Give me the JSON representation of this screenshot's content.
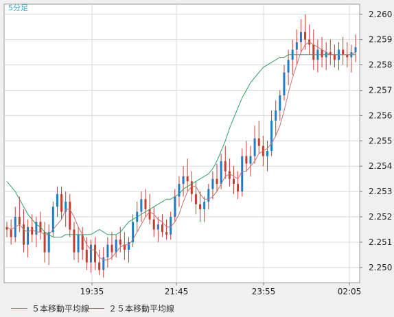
{
  "chart_data": {
    "type": "candlestick",
    "period_label": "5分足",
    "x_tick_labels": [
      "19:35",
      "21:45",
      "23:55",
      "02:05"
    ],
    "y_tick_labels": [
      "2.260",
      "2.259",
      "2.258",
      "2.257",
      "2.256",
      "2.255",
      "2.254",
      "2.253",
      "2.252",
      "2.251",
      "2.250"
    ],
    "ylim": [
      2.2494,
      2.2604
    ],
    "grid": true,
    "legend_position": "bottom-left",
    "colors": {
      "up": "#1e7dc6",
      "down": "#c83a2e",
      "ma5": "#c87070",
      "ma25": "#2aa06a",
      "grid": "#d8d8d8",
      "plot_bg": "#ffffff"
    },
    "series": [
      {
        "name": "５本移動平均線",
        "key": "ma5"
      },
      {
        "name": "２５本移動平均線",
        "key": "ma25"
      }
    ],
    "candles": [
      [
        2.2516,
        2.2518,
        2.2512,
        2.2515
      ],
      [
        2.2515,
        2.2519,
        2.2509,
        2.2512
      ],
      [
        2.2512,
        2.2524,
        2.251,
        2.252
      ],
      [
        2.252,
        2.2528,
        2.2514,
        2.2517
      ],
      [
        2.2517,
        2.2523,
        2.2506,
        2.2509
      ],
      [
        2.2509,
        2.2519,
        2.2504,
        2.2516
      ],
      [
        2.2516,
        2.2521,
        2.251,
        2.2513
      ],
      [
        2.2513,
        2.252,
        2.2508,
        2.2518
      ],
      [
        2.2518,
        2.2522,
        2.2511,
        2.2514
      ],
      [
        2.2514,
        2.2518,
        2.2502,
        2.2506
      ],
      [
        2.2506,
        2.2517,
        2.2501,
        2.2514
      ],
      [
        2.2514,
        2.2526,
        2.2512,
        2.2524
      ],
      [
        2.2524,
        2.2532,
        2.252,
        2.2529
      ],
      [
        2.2529,
        2.2532,
        2.2519,
        2.2522
      ],
      [
        2.2522,
        2.253,
        2.2516,
        2.2526
      ],
      [
        2.2526,
        2.2529,
        2.2512,
        2.2515
      ],
      [
        2.2515,
        2.2518,
        2.2503,
        2.2506
      ],
      [
        2.2506,
        2.2516,
        2.2502,
        2.2513
      ],
      [
        2.2513,
        2.2516,
        2.2503,
        2.2507
      ],
      [
        2.2507,
        2.2512,
        2.2499,
        2.2502
      ],
      [
        2.2502,
        2.2511,
        2.2498,
        2.2509
      ],
      [
        2.2509,
        2.2512,
        2.2499,
        2.2502
      ],
      [
        2.2502,
        2.2507,
        2.2497,
        2.2499
      ],
      [
        2.2499,
        2.2508,
        2.2496,
        2.2504
      ],
      [
        2.2504,
        2.2512,
        2.25,
        2.2509
      ],
      [
        2.2509,
        2.2514,
        2.2503,
        2.2506
      ],
      [
        2.2506,
        2.2513,
        2.2504,
        2.2511
      ],
      [
        2.2511,
        2.2516,
        2.2506,
        2.2509
      ],
      [
        2.2509,
        2.2514,
        2.2503,
        2.2507
      ],
      [
        2.2507,
        2.2512,
        2.2502,
        2.251
      ],
      [
        2.251,
        2.2521,
        2.2508,
        2.2518
      ],
      [
        2.2518,
        2.2526,
        2.2514,
        2.2522
      ],
      [
        2.2522,
        2.253,
        2.2518,
        2.2527
      ],
      [
        2.2527,
        2.2531,
        2.252,
        2.2523
      ],
      [
        2.2523,
        2.2529,
        2.2517,
        2.2519
      ],
      [
        2.2519,
        2.2524,
        2.2512,
        2.2515
      ],
      [
        2.2515,
        2.252,
        2.251,
        2.2517
      ],
      [
        2.2517,
        2.2521,
        2.2512,
        2.2514
      ],
      [
        2.2514,
        2.2519,
        2.2511,
        2.2513
      ],
      [
        2.2513,
        2.2522,
        2.2511,
        2.252
      ],
      [
        2.252,
        2.2531,
        2.2518,
        2.2528
      ],
      [
        2.2528,
        2.2536,
        2.2524,
        2.2533
      ],
      [
        2.2533,
        2.254,
        2.2528,
        2.2536
      ],
      [
        2.2536,
        2.2543,
        2.253,
        2.2534
      ],
      [
        2.2534,
        2.2538,
        2.2526,
        2.2529
      ],
      [
        2.2529,
        2.2534,
        2.2521,
        2.2525
      ],
      [
        2.2525,
        2.253,
        2.2518,
        2.2523
      ],
      [
        2.2523,
        2.2528,
        2.2518,
        2.2526
      ],
      [
        2.2526,
        2.2533,
        2.2523,
        2.2531
      ],
      [
        2.2531,
        2.2538,
        2.2527,
        2.2535
      ],
      [
        2.2535,
        2.2541,
        2.253,
        2.2533
      ],
      [
        2.2533,
        2.2545,
        2.2531,
        2.2542
      ],
      [
        2.2542,
        2.2548,
        2.2535,
        2.2538
      ],
      [
        2.2538,
        2.2543,
        2.2532,
        2.2535
      ],
      [
        2.2535,
        2.254,
        2.2529,
        2.2533
      ],
      [
        2.2533,
        2.2538,
        2.2527,
        2.253
      ],
      [
        2.253,
        2.2547,
        2.2528,
        2.2544
      ],
      [
        2.2544,
        2.255,
        2.2538,
        2.2541
      ],
      [
        2.2541,
        2.2548,
        2.2536,
        2.2544
      ],
      [
        2.2544,
        2.2556,
        2.2541,
        2.2551
      ],
      [
        2.2551,
        2.2558,
        2.2545,
        2.2548
      ],
      [
        2.2548,
        2.2552,
        2.254,
        2.2544
      ],
      [
        2.2544,
        2.255,
        2.2538,
        2.2546
      ],
      [
        2.2546,
        2.2562,
        2.2544,
        2.2558
      ],
      [
        2.2558,
        2.2566,
        2.2552,
        2.2562
      ],
      [
        2.2562,
        2.257,
        2.2558,
        2.2568
      ],
      [
        2.2568,
        2.258,
        2.2566,
        2.2577
      ],
      [
        2.2577,
        2.2586,
        2.2572,
        2.2582
      ],
      [
        2.2582,
        2.259,
        2.2576,
        2.2586
      ],
      [
        2.2586,
        2.2594,
        2.258,
        2.2589
      ],
      [
        2.2589,
        2.2598,
        2.2585,
        2.2593
      ],
      [
        2.2593,
        2.26,
        2.2586,
        2.259
      ],
      [
        2.259,
        2.2596,
        2.2584,
        2.2588
      ],
      [
        2.2588,
        2.2594,
        2.2578,
        2.2582
      ],
      [
        2.2582,
        2.259,
        2.2577,
        2.2586
      ],
      [
        2.2586,
        2.2591,
        2.2579,
        2.2583
      ],
      [
        2.2583,
        2.2589,
        2.2578,
        2.2585
      ],
      [
        2.2585,
        2.259,
        2.258,
        2.2584
      ],
      [
        2.2584,
        2.2588,
        2.2579,
        2.2582
      ],
      [
        2.2582,
        2.2589,
        2.2578,
        2.2586
      ],
      [
        2.2586,
        2.2591,
        2.258,
        2.2584
      ],
      [
        2.2584,
        2.2589,
        2.2579,
        2.2583
      ],
      [
        2.2583,
        2.2588,
        2.2577,
        2.2585
      ],
      [
        2.2585,
        2.2592,
        2.2581,
        2.2587
      ]
    ],
    "ma5": [
      2.2516,
      2.2515,
      2.2516,
      2.2517,
      2.2515,
      2.2514,
      2.2515,
      2.2514,
      2.2514,
      2.2513,
      2.2513,
      2.2515,
      2.2517,
      2.2519,
      2.2523,
      2.2523,
      2.252,
      2.2516,
      2.2513,
      2.2509,
      2.2507,
      2.2507,
      2.2504,
      2.2503,
      2.2503,
      2.2504,
      2.2506,
      2.2508,
      2.2509,
      2.2509,
      2.2511,
      2.2514,
      2.2517,
      2.252,
      2.2522,
      2.2521,
      2.2519,
      2.2518,
      2.2516,
      2.2516,
      2.2518,
      2.2521,
      2.2526,
      2.253,
      2.2532,
      2.2532,
      2.2529,
      2.2527,
      2.2527,
      2.2528,
      2.253,
      2.2533,
      2.2536,
      2.2537,
      2.2536,
      2.2535,
      2.2538,
      2.2538,
      2.254,
      2.2542,
      2.2545,
      2.2546,
      2.2547,
      2.2549,
      2.2552,
      2.2556,
      2.2562,
      2.2569,
      2.2575,
      2.258,
      2.2585,
      2.2588,
      2.2589,
      2.2588,
      2.2587,
      2.2586,
      2.2585,
      2.2584,
      2.2584,
      2.2584,
      2.2584,
      2.2584,
      2.2584,
      2.2585
    ],
    "ma25": [
      2.2534,
      2.2532,
      2.253,
      2.2527,
      2.2524,
      2.2521,
      2.2519,
      2.2517,
      2.2516,
      2.2514,
      2.2513,
      2.2512,
      2.2512,
      2.2512,
      2.2513,
      2.2513,
      2.2513,
      2.2513,
      2.2513,
      2.2513,
      2.2513,
      2.2514,
      2.2515,
      2.2514,
      2.2513,
      2.2513,
      2.2513,
      2.2514,
      2.2516,
      2.2518,
      2.2519,
      2.252,
      2.2521,
      2.2522,
      2.2523,
      2.2524,
      2.2525,
      2.2526,
      2.2527,
      2.2527,
      2.2528,
      2.2529,
      2.2531,
      2.2532,
      2.2533,
      2.2534,
      2.2535,
      2.2536,
      2.2537,
      2.2539,
      2.2542,
      2.2546,
      2.255,
      2.2555,
      2.2559,
      2.2563,
      2.2567,
      2.257,
      2.2573,
      2.2575,
      2.2577,
      2.2579,
      2.258,
      2.2581,
      2.2582,
      2.2583,
      2.2583,
      2.2584,
      2.2584,
      2.2584,
      2.2584,
      2.2584,
      2.2584,
      2.2584,
      2.2584,
      2.2584,
      2.2584,
      2.2584,
      2.2584,
      2.2584,
      2.2584,
      2.2584,
      2.2584,
      2.2584
    ]
  }
}
